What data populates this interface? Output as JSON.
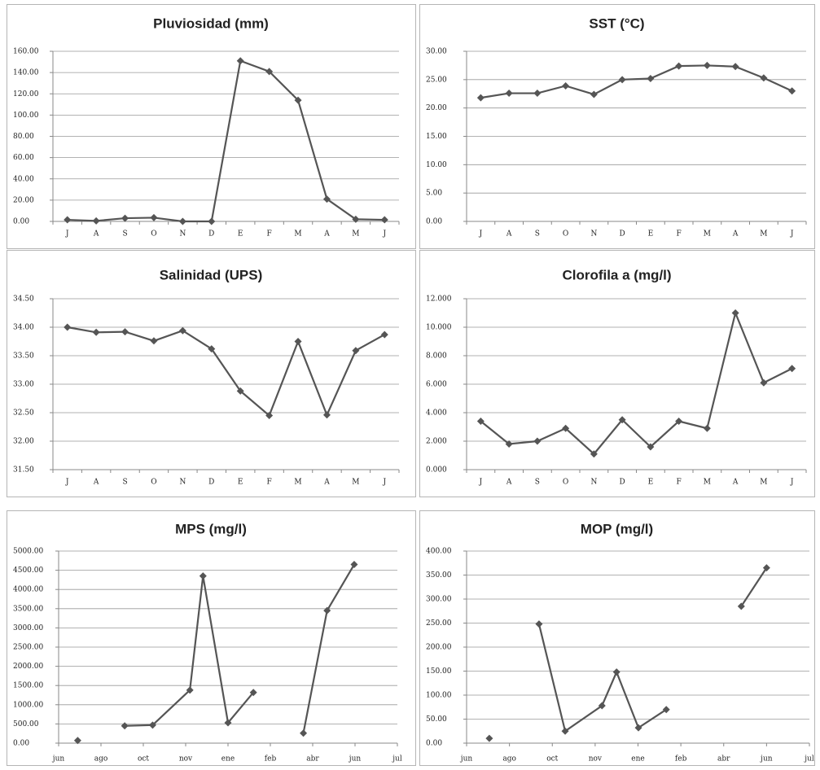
{
  "chart_data": [
    {
      "type": "line",
      "title": "Pluviosidad (mm)",
      "color": "#555555",
      "grid": true,
      "categories": [
        "J",
        "A",
        "S",
        "O",
        "N",
        "D",
        "E",
        "F",
        "M",
        "A",
        "M",
        "J"
      ],
      "values": [
        1.5,
        0.5,
        3,
        3.5,
        0,
        0,
        151,
        141,
        114,
        21,
        2,
        1.5
      ],
      "ylim": [
        0,
        160
      ],
      "yticks": [
        {
          "value": 0,
          "label": "0.00"
        },
        {
          "value": 20,
          "label": "20.00"
        },
        {
          "value": 40,
          "label": "40.00"
        },
        {
          "value": 60,
          "label": "60.00"
        },
        {
          "value": 80,
          "label": "80.00"
        },
        {
          "value": 100,
          "label": "100.00"
        },
        {
          "value": 120,
          "label": "120.00"
        },
        {
          "value": 140,
          "label": "140.00"
        },
        {
          "value": 160,
          "label": "160.00"
        }
      ]
    },
    {
      "type": "line",
      "title": "SST (°C)",
      "color": "#555555",
      "grid": true,
      "categories": [
        "J",
        "A",
        "S",
        "O",
        "N",
        "D",
        "E",
        "F",
        "M",
        "A",
        "M",
        "J"
      ],
      "values": [
        21.8,
        22.6,
        22.6,
        23.9,
        22.4,
        25,
        25.2,
        27.4,
        27.5,
        27.3,
        25.3,
        23
      ],
      "ylim": [
        0,
        30
      ],
      "yticks": [
        {
          "value": 0,
          "label": "0.00"
        },
        {
          "value": 5,
          "label": "5.00"
        },
        {
          "value": 10,
          "label": "10.00"
        },
        {
          "value": 15,
          "label": "15.00"
        },
        {
          "value": 20,
          "label": "20.00"
        },
        {
          "value": 25,
          "label": "25.00"
        },
        {
          "value": 30,
          "label": "30.00"
        }
      ]
    },
    {
      "type": "line",
      "title": "Salinidad (UPS)",
      "color": "#555555",
      "grid": true,
      "categories": [
        "J",
        "A",
        "S",
        "O",
        "N",
        "D",
        "E",
        "F",
        "M",
        "A",
        "M",
        "J"
      ],
      "values": [
        34.0,
        33.91,
        33.92,
        33.76,
        33.94,
        33.62,
        32.88,
        32.45,
        33.75,
        32.46,
        33.59,
        33.87
      ],
      "ylim": [
        31.5,
        34.5
      ],
      "yticks": [
        {
          "value": 31.5,
          "label": "31.50"
        },
        {
          "value": 32,
          "label": "32.00"
        },
        {
          "value": 32.5,
          "label": "32.50"
        },
        {
          "value": 33,
          "label": "33.00"
        },
        {
          "value": 33.5,
          "label": "33.50"
        },
        {
          "value": 34,
          "label": "34.00"
        },
        {
          "value": 34.5,
          "label": "34.50"
        }
      ]
    },
    {
      "type": "line",
      "title": "Clorofila a (mg/l)",
      "color": "#555555",
      "grid": true,
      "categories": [
        "J",
        "A",
        "S",
        "O",
        "N",
        "D",
        "E",
        "F",
        "M",
        "A",
        "M",
        "J"
      ],
      "values": [
        3.4,
        1.8,
        2.0,
        2.9,
        1.1,
        3.5,
        1.6,
        3.4,
        2.9,
        11.0,
        6.1,
        7.1
      ],
      "ylim": [
        0,
        12
      ],
      "yticks": [
        {
          "value": 0,
          "label": "0.000"
        },
        {
          "value": 2,
          "label": "2.000"
        },
        {
          "value": 4,
          "label": "4.000"
        },
        {
          "value": 6,
          "label": "6.000"
        },
        {
          "value": 8,
          "label": "8.000"
        },
        {
          "value": 10,
          "label": "10.000"
        },
        {
          "value": 12,
          "label": "12.000"
        }
      ]
    },
    {
      "type": "line",
      "title": "MPS (mg/l)",
      "color": "#555555",
      "grid": true,
      "x": [
        0.45,
        null,
        1.56,
        2.22,
        3.1,
        3.41,
        4.0,
        4.6,
        null,
        5.78,
        6.34,
        6.98
      ],
      "values": [
        70,
        null,
        450,
        470,
        1380,
        4350,
        530,
        1320,
        null,
        260,
        3450,
        4650
      ],
      "xlim": [
        0,
        8
      ],
      "xticks": [
        {
          "value": 0,
          "label": "jun"
        },
        {
          "value": 1,
          "label": "ago"
        },
        {
          "value": 2,
          "label": "oct"
        },
        {
          "value": 3,
          "label": "nov"
        },
        {
          "value": 4,
          "label": "ene"
        },
        {
          "value": 5,
          "label": "feb"
        },
        {
          "value": 6,
          "label": "abr"
        },
        {
          "value": 7,
          "label": "jun"
        },
        {
          "value": 8,
          "label": "jul"
        }
      ],
      "ylim": [
        0,
        5000
      ],
      "yticks": [
        {
          "value": 0,
          "label": "0.00"
        },
        {
          "value": 500,
          "label": "500.00"
        },
        {
          "value": 1000,
          "label": "1000.00"
        },
        {
          "value": 1500,
          "label": "1500.00"
        },
        {
          "value": 2000,
          "label": "2000.00"
        },
        {
          "value": 2500,
          "label": "2500.00"
        },
        {
          "value": 3000,
          "label": "3000.00"
        },
        {
          "value": 3500,
          "label": "3500.00"
        },
        {
          "value": 4000,
          "label": "4000.00"
        },
        {
          "value": 4500,
          "label": "4500.00"
        },
        {
          "value": 5000,
          "label": "5000.00"
        }
      ]
    },
    {
      "type": "line",
      "title": "MOP (mg/l)",
      "color": "#555555",
      "grid": true,
      "x": [
        0.53,
        null,
        1.69,
        2.3,
        3.16,
        3.5,
        4.01,
        4.66,
        null,
        6.41,
        7.0
      ],
      "values": [
        10,
        null,
        248,
        25,
        78,
        148,
        32,
        70,
        null,
        285,
        365
      ],
      "xlim": [
        0,
        8
      ],
      "xticks": [
        {
          "value": 0,
          "label": "jun"
        },
        {
          "value": 1,
          "label": "ago"
        },
        {
          "value": 2,
          "label": "oct"
        },
        {
          "value": 3,
          "label": "nov"
        },
        {
          "value": 4,
          "label": "ene"
        },
        {
          "value": 5,
          "label": "feb"
        },
        {
          "value": 6,
          "label": "abr"
        },
        {
          "value": 7,
          "label": "jun"
        },
        {
          "value": 8,
          "label": "jul"
        }
      ],
      "ylim": [
        0,
        400
      ],
      "yticks": [
        {
          "value": 0,
          "label": "0.00"
        },
        {
          "value": 50,
          "label": "50.00"
        },
        {
          "value": 100,
          "label": "100.00"
        },
        {
          "value": 150,
          "label": "150.00"
        },
        {
          "value": 200,
          "label": "200.00"
        },
        {
          "value": 250,
          "label": "250.00"
        },
        {
          "value": 300,
          "label": "300.00"
        },
        {
          "value": 350,
          "label": "350.00"
        },
        {
          "value": 400,
          "label": "400.00"
        }
      ]
    }
  ]
}
